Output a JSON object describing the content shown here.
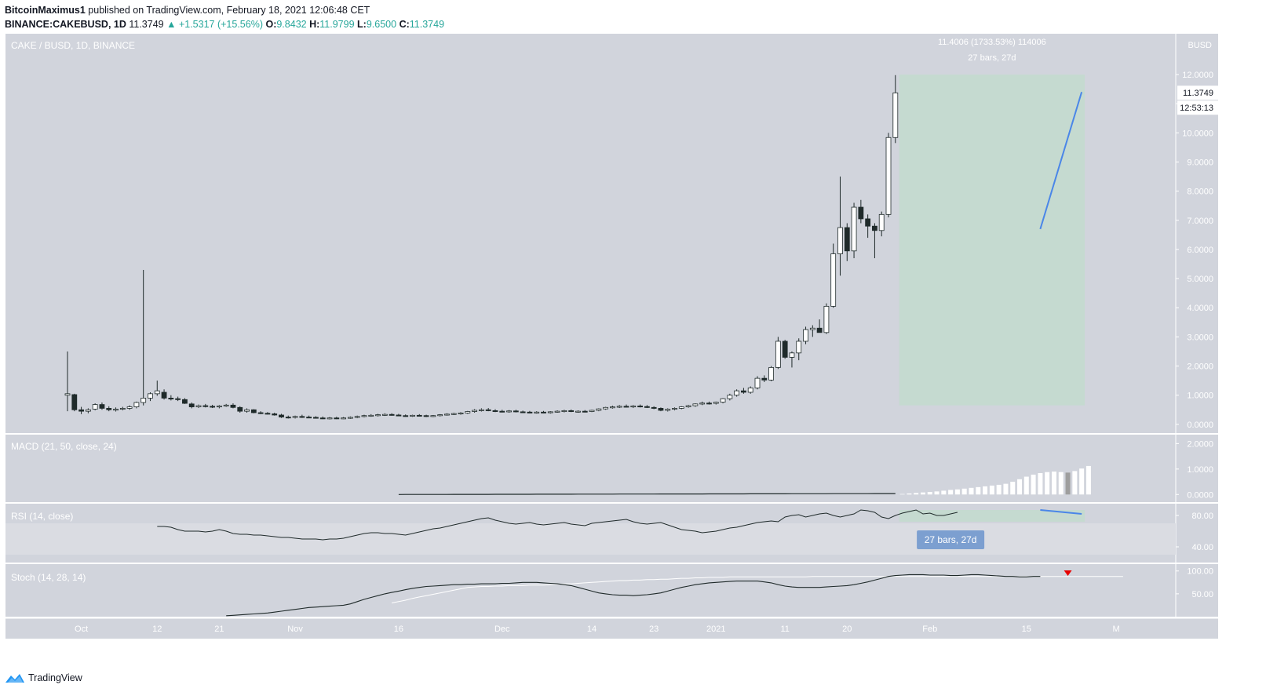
{
  "header": {
    "publisher": "BitcoinMaximus1",
    "published_text": "published on TradingView.com, February 18, 2021 12:06:48 CET",
    "symbol": "BINANCE:CAKEBUSD, 1D",
    "last": "11.3749",
    "change": "▲ +1.5317 (+15.56%)",
    "o_label": "O:",
    "o": "9.8432",
    "h_label": "H:",
    "h": "11.9799",
    "l_label": "L:",
    "l": "9.6500",
    "c_label": "C:",
    "c": "11.3749"
  },
  "footer": {
    "brand": "TradingView"
  },
  "colors": {
    "panel_bg": "#d1d4dc",
    "highlight": "#c5dad0",
    "trendline": "#4a86e8",
    "candle_up": "#ffffff",
    "candle_down": "#1f2a2a",
    "rsi_badge": "#7c9fd0",
    "stoch_marker": "#e60000"
  },
  "chart_data": [
    {
      "type": "candlestick",
      "title": "CAKE / BUSD, 1D, BINANCE",
      "y_unit": "BUSD",
      "ylim": [
        -0.3,
        13.4
      ],
      "y_ticks": [
        0,
        1,
        2,
        3,
        4,
        5,
        6,
        7,
        8,
        9,
        10,
        11,
        12
      ],
      "y_tick_labels": [
        "0.0000",
        "1.0000",
        "2.0000",
        "3.0000",
        "4.0000",
        "5.0000",
        "6.0000",
        "7.0000",
        "8.0000",
        "9.0000",
        "10.0000",
        "11.0000",
        "12.0000"
      ],
      "x_ticks": [
        {
          "label": "Oct",
          "i": 2
        },
        {
          "label": "12",
          "i": 13
        },
        {
          "label": "21",
          "i": 22
        },
        {
          "label": "Nov",
          "i": 33
        },
        {
          "label": "16",
          "i": 48
        },
        {
          "label": "Dec",
          "i": 63
        },
        {
          "label": "14",
          "i": 76
        },
        {
          "label": "23",
          "i": 85
        },
        {
          "label": "2021",
          "i": 94
        },
        {
          "label": "11",
          "i": 104
        },
        {
          "label": "20",
          "i": 113
        },
        {
          "label": "Feb",
          "i": 125
        },
        {
          "label": "15",
          "i": 139
        },
        {
          "label": "M",
          "i": 152
        }
      ],
      "last_price_label": "11.3749",
      "countdown_label": "12:53:13",
      "range_measure": {
        "start_i": 121,
        "end_i": 147,
        "low": 0.65,
        "high": 12.0,
        "label1": "11.4006 (1733.53%) 114006",
        "label2": "27 bars, 27d"
      },
      "trendline": {
        "from": [
          141,
          6.7
        ],
        "to": [
          147,
          11.4
        ]
      },
      "candles": [
        [
          1.0,
          2.5,
          0.45,
          1.05
        ],
        [
          1.02,
          1.05,
          0.45,
          0.5
        ],
        [
          0.5,
          0.6,
          0.35,
          0.45
        ],
        [
          0.45,
          0.55,
          0.38,
          0.5
        ],
        [
          0.52,
          0.72,
          0.48,
          0.68
        ],
        [
          0.68,
          0.75,
          0.5,
          0.55
        ],
        [
          0.55,
          0.62,
          0.45,
          0.5
        ],
        [
          0.5,
          0.58,
          0.44,
          0.52
        ],
        [
          0.52,
          0.6,
          0.48,
          0.55
        ],
        [
          0.55,
          0.65,
          0.5,
          0.6
        ],
        [
          0.6,
          0.78,
          0.55,
          0.75
        ],
        [
          0.75,
          5.3,
          0.65,
          0.9
        ],
        [
          0.9,
          1.1,
          0.8,
          1.05
        ],
        [
          1.05,
          1.5,
          0.98,
          1.15
        ],
        [
          1.1,
          1.2,
          0.85,
          0.9
        ],
        [
          0.9,
          1.0,
          0.82,
          0.88
        ],
        [
          0.88,
          0.95,
          0.8,
          0.85
        ],
        [
          0.85,
          0.9,
          0.7,
          0.72
        ],
        [
          0.7,
          0.75,
          0.55,
          0.6
        ],
        [
          0.6,
          0.68,
          0.56,
          0.64
        ],
        [
          0.64,
          0.7,
          0.58,
          0.62
        ],
        [
          0.62,
          0.67,
          0.56,
          0.6
        ],
        [
          0.6,
          0.66,
          0.55,
          0.63
        ],
        [
          0.63,
          0.7,
          0.6,
          0.66
        ],
        [
          0.66,
          0.72,
          0.55,
          0.58
        ],
        [
          0.58,
          0.62,
          0.4,
          0.45
        ],
        [
          0.45,
          0.55,
          0.4,
          0.5
        ],
        [
          0.5,
          0.52,
          0.38,
          0.4
        ],
        [
          0.4,
          0.45,
          0.35,
          0.38
        ],
        [
          0.38,
          0.42,
          0.34,
          0.36
        ],
        [
          0.36,
          0.4,
          0.3,
          0.32
        ],
        [
          0.32,
          0.36,
          0.22,
          0.25
        ],
        [
          0.25,
          0.3,
          0.2,
          0.24
        ],
        [
          0.24,
          0.3,
          0.2,
          0.27
        ],
        [
          0.27,
          0.33,
          0.22,
          0.25
        ],
        [
          0.25,
          0.3,
          0.22,
          0.24
        ],
        [
          0.24,
          0.28,
          0.2,
          0.22
        ],
        [
          0.22,
          0.27,
          0.18,
          0.2
        ],
        [
          0.2,
          0.25,
          0.17,
          0.22
        ],
        [
          0.22,
          0.26,
          0.18,
          0.2
        ],
        [
          0.2,
          0.25,
          0.18,
          0.22
        ],
        [
          0.22,
          0.27,
          0.19,
          0.24
        ],
        [
          0.24,
          0.3,
          0.21,
          0.27
        ],
        [
          0.27,
          0.33,
          0.24,
          0.3
        ],
        [
          0.3,
          0.35,
          0.26,
          0.31
        ],
        [
          0.31,
          0.36,
          0.27,
          0.33
        ],
        [
          0.33,
          0.38,
          0.29,
          0.34
        ],
        [
          0.34,
          0.38,
          0.3,
          0.32
        ],
        [
          0.32,
          0.36,
          0.28,
          0.3
        ],
        [
          0.3,
          0.34,
          0.26,
          0.29
        ],
        [
          0.29,
          0.33,
          0.26,
          0.31
        ],
        [
          0.31,
          0.35,
          0.28,
          0.3
        ],
        [
          0.3,
          0.33,
          0.25,
          0.28
        ],
        [
          0.28,
          0.32,
          0.25,
          0.3
        ],
        [
          0.3,
          0.35,
          0.27,
          0.33
        ],
        [
          0.33,
          0.38,
          0.3,
          0.35
        ],
        [
          0.35,
          0.4,
          0.32,
          0.37
        ],
        [
          0.37,
          0.42,
          0.33,
          0.39
        ],
        [
          0.39,
          0.46,
          0.36,
          0.44
        ],
        [
          0.44,
          0.52,
          0.4,
          0.48
        ],
        [
          0.48,
          0.55,
          0.44,
          0.5
        ],
        [
          0.5,
          0.56,
          0.45,
          0.47
        ],
        [
          0.47,
          0.52,
          0.42,
          0.45
        ],
        [
          0.45,
          0.5,
          0.41,
          0.44
        ],
        [
          0.44,
          0.49,
          0.4,
          0.46
        ],
        [
          0.46,
          0.5,
          0.41,
          0.43
        ],
        [
          0.43,
          0.47,
          0.39,
          0.42
        ],
        [
          0.42,
          0.46,
          0.38,
          0.4
        ],
        [
          0.4,
          0.45,
          0.37,
          0.42
        ],
        [
          0.42,
          0.46,
          0.38,
          0.41
        ],
        [
          0.41,
          0.45,
          0.37,
          0.43
        ],
        [
          0.43,
          0.48,
          0.4,
          0.45
        ],
        [
          0.45,
          0.5,
          0.41,
          0.47
        ],
        [
          0.47,
          0.51,
          0.42,
          0.44
        ],
        [
          0.44,
          0.48,
          0.4,
          0.45
        ],
        [
          0.45,
          0.49,
          0.41,
          0.44
        ],
        [
          0.44,
          0.5,
          0.42,
          0.48
        ],
        [
          0.48,
          0.55,
          0.45,
          0.53
        ],
        [
          0.53,
          0.6,
          0.5,
          0.58
        ],
        [
          0.58,
          0.64,
          0.54,
          0.6
        ],
        [
          0.6,
          0.66,
          0.56,
          0.62
        ],
        [
          0.62,
          0.68,
          0.58,
          0.6
        ],
        [
          0.6,
          0.66,
          0.56,
          0.63
        ],
        [
          0.63,
          0.68,
          0.58,
          0.61
        ],
        [
          0.61,
          0.66,
          0.56,
          0.58
        ],
        [
          0.58,
          0.62,
          0.52,
          0.55
        ],
        [
          0.55,
          0.58,
          0.45,
          0.48
        ],
        [
          0.48,
          0.55,
          0.44,
          0.52
        ],
        [
          0.52,
          0.58,
          0.48,
          0.55
        ],
        [
          0.55,
          0.62,
          0.52,
          0.6
        ],
        [
          0.6,
          0.67,
          0.57,
          0.64
        ],
        [
          0.64,
          0.72,
          0.6,
          0.7
        ],
        [
          0.7,
          0.78,
          0.66,
          0.73
        ],
        [
          0.73,
          0.78,
          0.68,
          0.72
        ],
        [
          0.72,
          0.78,
          0.68,
          0.76
        ],
        [
          0.76,
          0.9,
          0.72,
          0.88
        ],
        [
          0.88,
          1.05,
          0.82,
          1.0
        ],
        [
          1.0,
          1.2,
          0.95,
          1.15
        ],
        [
          1.15,
          1.25,
          1.05,
          1.1
        ],
        [
          1.1,
          1.3,
          1.05,
          1.25
        ],
        [
          1.25,
          1.65,
          1.2,
          1.58
        ],
        [
          1.58,
          1.68,
          1.45,
          1.52
        ],
        [
          1.52,
          2.0,
          1.48,
          1.95
        ],
        [
          1.95,
          3.0,
          1.9,
          2.85
        ],
        [
          2.85,
          2.9,
          2.25,
          2.3
        ],
        [
          2.3,
          2.5,
          1.95,
          2.45
        ],
        [
          2.45,
          2.95,
          2.2,
          2.85
        ],
        [
          2.85,
          3.35,
          2.75,
          3.25
        ],
        [
          3.25,
          3.4,
          3.0,
          3.3
        ],
        [
          3.3,
          3.6,
          3.15,
          3.15
        ],
        [
          3.15,
          4.15,
          3.1,
          4.05
        ],
        [
          4.05,
          6.2,
          4.0,
          5.85
        ],
        [
          5.85,
          8.5,
          5.1,
          6.75
        ],
        [
          6.75,
          6.9,
          5.6,
          5.95
        ],
        [
          5.95,
          7.6,
          5.7,
          7.45
        ],
        [
          7.45,
          7.7,
          6.9,
          7.05
        ],
        [
          7.05,
          7.2,
          6.4,
          6.8
        ],
        [
          6.8,
          6.9,
          5.7,
          6.65
        ],
        [
          6.65,
          7.3,
          6.45,
          7.2
        ],
        [
          7.2,
          10.0,
          7.1,
          9.84
        ],
        [
          9.84,
          11.98,
          9.65,
          11.37
        ]
      ]
    },
    {
      "type": "line",
      "title": "MACD (21, 50, close, 24)",
      "ylim": [
        -0.3,
        2.35
      ],
      "y_tick_labels": [
        "0.0000",
        "1.0000",
        "2.0000"
      ],
      "y_ticks": [
        0,
        1,
        2
      ],
      "start_i": 48,
      "line": [
        0.0,
        0.0,
        0.0,
        0.0,
        0.0,
        0.0,
        0.0,
        0.0,
        0.0,
        0.0,
        0.0,
        0.0,
        0.0,
        0.0,
        0.0,
        0.0,
        0.0,
        0.0,
        0.0,
        0.0,
        0.0,
        0.0,
        0.0,
        0.0,
        0.0,
        0.0,
        0.0,
        0.0,
        0.0,
        0.0,
        0.0,
        0.0,
        0.0,
        0.0,
        0.0,
        0.0,
        0.0,
        0.0,
        0.0,
        0.0,
        0.0,
        0.0,
        0.0,
        0.0,
        0.0,
        0.0,
        0.0,
        0.0,
        0.0,
        0.0,
        0.0,
        0.0,
        0.0,
        0.0,
        0.0,
        0.0,
        0.0,
        0.0,
        0.0,
        0.0,
        0.0,
        0.0,
        0.0,
        0.0,
        0.0,
        0.0,
        0.0,
        0.0,
        0.0,
        0.0,
        0.0,
        0.0,
        0.0,
        0.0,
        0.0,
        0.0,
        0.0,
        0.0,
        0.0,
        0.0,
        0.0,
        0.0,
        0.0,
        0.0,
        0.0,
        0.0,
        0.0,
        0.0,
        0.0,
        0.0,
        0.0,
        0.0,
        0.0,
        0.0,
        0.0,
        0.0,
        0.0,
        0.0,
        0.0,
        0.0,
        0.0
      ],
      "histogram_start_i": 121,
      "histogram": [
        0.02,
        0.04,
        0.06,
        0.08,
        0.1,
        0.12,
        0.15,
        0.18,
        0.2,
        0.23,
        0.26,
        0.29,
        0.32,
        0.35,
        0.38,
        0.42,
        0.5,
        0.6,
        0.7,
        0.78,
        0.84,
        0.88,
        0.9,
        0.88,
        0.86,
        0.92,
        1.02,
        1.12
      ]
    },
    {
      "type": "line",
      "title": "RSI (14, close)",
      "ylim": [
        20,
        95
      ],
      "y_ticks": [
        40,
        80
      ],
      "y_tick_labels": [
        "40.00",
        "80.00"
      ],
      "start_i": 13,
      "values": [
        66,
        66,
        65,
        62,
        60,
        60,
        60,
        59,
        60,
        62,
        60,
        57,
        56,
        56,
        55,
        55,
        54,
        53,
        52,
        52,
        51,
        50,
        50,
        50,
        49,
        50,
        50,
        51,
        53,
        55,
        57,
        58,
        58,
        57,
        57,
        56,
        55,
        57,
        59,
        61,
        63,
        64,
        66,
        68,
        70,
        72,
        74,
        76,
        77,
        74,
        72,
        70,
        69,
        70,
        71,
        69,
        68,
        69,
        70,
        71,
        69,
        68,
        67,
        70,
        71,
        72,
        73,
        74,
        75,
        72,
        70,
        69,
        70,
        71,
        68,
        65,
        62,
        61,
        60,
        58,
        59,
        60,
        62,
        64,
        65,
        67,
        69,
        71,
        72,
        73,
        72,
        78,
        80,
        81,
        78,
        80,
        82,
        83,
        80,
        78,
        80,
        82,
        87,
        86,
        84,
        78,
        76,
        80,
        83,
        85,
        87,
        82,
        83,
        80,
        80,
        82,
        84
      ]
    },
    {
      "type": "line",
      "title": "Stoch (14, 28, 14)",
      "ylim": [
        0,
        115
      ],
      "y_ticks": [
        50,
        100
      ],
      "y_tick_labels": [
        "50.00",
        "100.00"
      ],
      "start_i": 23,
      "k": [
        2,
        3,
        4,
        5,
        6,
        7,
        8,
        10,
        12,
        14,
        16,
        18,
        20,
        21,
        22,
        23,
        24,
        25,
        28,
        33,
        38,
        42,
        46,
        50,
        53,
        56,
        59,
        62,
        64,
        66,
        67,
        68,
        69,
        70,
        70,
        71,
        71,
        72,
        72,
        72,
        73,
        73,
        74,
        75,
        75,
        75,
        74,
        73,
        72,
        70,
        68,
        64,
        60,
        56,
        52,
        50,
        48,
        47,
        47,
        46,
        47,
        48,
        50,
        52,
        56,
        60,
        64,
        67,
        70,
        72,
        74,
        75,
        76,
        77,
        78,
        78,
        78,
        78,
        76,
        74,
        70,
        67,
        65,
        64,
        64,
        64,
        64,
        65,
        66,
        67,
        68,
        70,
        73,
        76,
        80,
        84,
        88,
        90,
        91,
        92,
        92,
        92,
        91,
        91,
        91,
        90,
        90,
        91,
        92,
        92,
        91,
        90,
        89,
        88,
        88,
        87,
        87,
        88,
        88
      ],
      "d_start_i": 47,
      "d": [
        30,
        33,
        36,
        40,
        43,
        46,
        49,
        52,
        55,
        58,
        61,
        64,
        65,
        66,
        66,
        67,
        67,
        68,
        68,
        68,
        69,
        69,
        69,
        70,
        71,
        72,
        72,
        73,
        74,
        75,
        76,
        77,
        78,
        79,
        79,
        80,
        80,
        81,
        81,
        82,
        82,
        83,
        84,
        84,
        85,
        85,
        86,
        86,
        86,
        87,
        87,
        87,
        87,
        87,
        87,
        87,
        87,
        87,
        87,
        87,
        87,
        88,
        88,
        88,
        88,
        88,
        88,
        88,
        88,
        88,
        88,
        88,
        88,
        88,
        88,
        88,
        88,
        88,
        88,
        88,
        88,
        88,
        88,
        88,
        88,
        88,
        88,
        88,
        88,
        88,
        88,
        88,
        88,
        88,
        88,
        88,
        88,
        88,
        88,
        88,
        88,
        88,
        88,
        88,
        88,
        88,
        88
      ],
      "marker_i": 145
    }
  ]
}
